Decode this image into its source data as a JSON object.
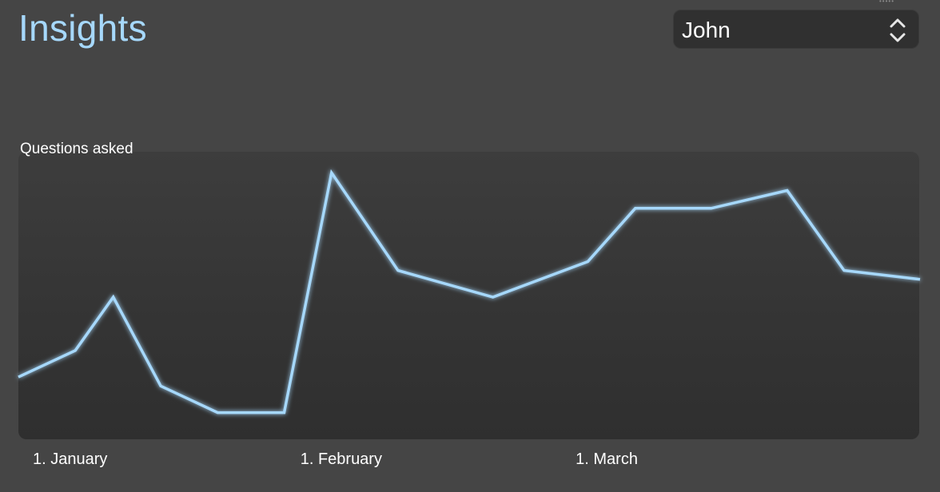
{
  "header": {
    "title": "Insights"
  },
  "user_select": {
    "selected": "John",
    "icon": "chevron-up-down-icon"
  },
  "colors": {
    "accent": "#a6d8fb",
    "background": "#454545",
    "chart_fill": "#333333"
  },
  "chart_data": {
    "type": "line",
    "title": "",
    "xlabel": "",
    "ylabel": "Questions asked",
    "x_tick_labels": [
      "1. January",
      "1. February",
      "1. March"
    ],
    "x_tick_dates": [
      "01-01",
      "02-01",
      "03-01"
    ],
    "grid": false,
    "series": [
      {
        "x": [
          "12-29",
          "01-04",
          "01-08",
          "01-13",
          "01-19",
          "01-26",
          "01-31",
          "02-07",
          "02-17",
          "02-27",
          "03-04",
          "03-12",
          "03-20",
          "03-26",
          "03-34"
        ],
        "y": [
          7,
          10,
          16,
          6,
          3,
          3,
          30,
          19,
          16,
          20,
          26,
          26,
          28,
          19,
          18
        ]
      }
    ],
    "ylim": [
      0,
      32
    ]
  }
}
